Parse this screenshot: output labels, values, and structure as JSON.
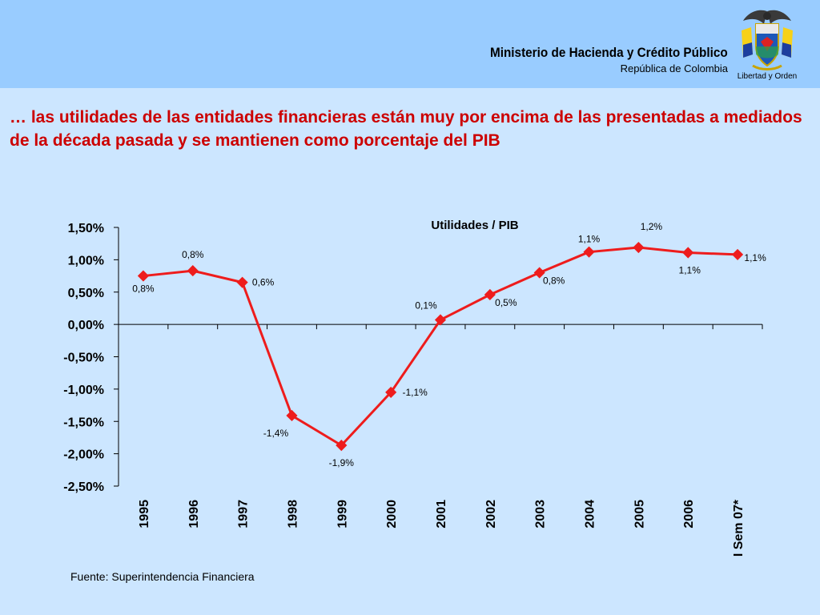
{
  "header": {
    "ministry": "Ministerio de Hacienda y Crédito Público",
    "country": "República de Colombia",
    "motto": "Libertad y Orden",
    "seal_icon": "colombia-coat-of-arms-icon"
  },
  "headline": "… las utilidades de las entidades financieras están muy por encima de las presentadas a mediados de la década pasada y se mantienen como porcentaje del PIB",
  "source": "Fuente: Superintendencia Financiera",
  "chart_data": {
    "type": "line",
    "title": "Utilidades / PIB",
    "xlabel": "",
    "ylabel": "",
    "categories": [
      "1995",
      "1996",
      "1997",
      "1998",
      "1999",
      "2000",
      "2001",
      "2002",
      "2003",
      "2004",
      "2005",
      "2006",
      "I Sem 07*"
    ],
    "values": [
      0.75,
      0.83,
      0.65,
      -1.41,
      -1.87,
      -1.05,
      0.07,
      0.46,
      0.8,
      1.12,
      1.19,
      1.11,
      1.08
    ],
    "data_labels": [
      "0,8%",
      "0,8%",
      "0,6%",
      "-1,4%",
      "-1,9%",
      "-1,1%",
      "0,1%",
      "0,5%",
      "0,8%",
      "1,1%",
      "1,2%",
      "1,1%",
      "1,1%"
    ],
    "y_ticks": [
      1.5,
      1.0,
      0.5,
      0.0,
      -0.5,
      -1.0,
      -1.5,
      -2.0,
      -2.5
    ],
    "y_tick_labels": [
      "1,50%",
      "1,00%",
      "0,50%",
      "0,00%",
      "-0,50%",
      "-1,00%",
      "-1,50%",
      "-2,00%",
      "-2,50%"
    ],
    "ylim": [
      -2.5,
      1.5
    ],
    "grid": false,
    "legend": "none",
    "colors": {
      "line": "#ee1c1c",
      "marker": "#ee1c1c",
      "axis": "#000000"
    }
  }
}
